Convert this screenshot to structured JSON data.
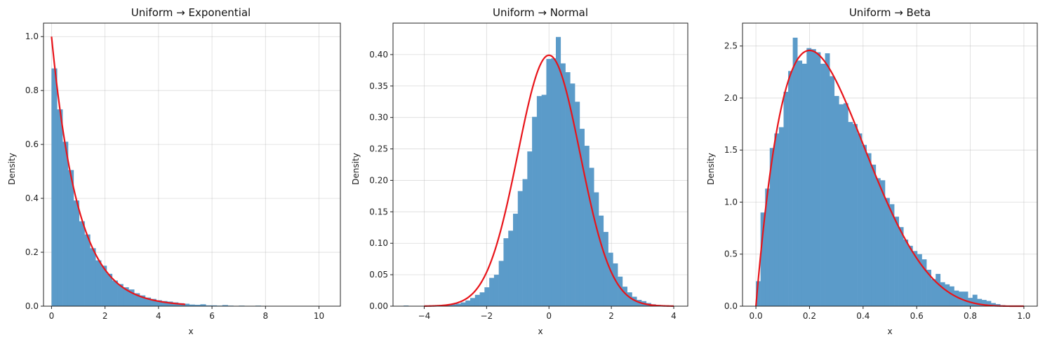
{
  "figure": {
    "background": "#ffffff"
  },
  "colors": {
    "bars": "#5b9bc9",
    "curve": "#e8141a"
  },
  "chart_data": [
    {
      "type": "bar",
      "title": "Uniform → Exponential",
      "xlabel": "x",
      "ylabel": "Density",
      "xlim": [
        -0.3,
        10.8
      ],
      "ylim": [
        0,
        1.05
      ],
      "xticks": [
        0,
        2,
        4,
        6,
        8,
        10
      ],
      "xtick_labels": [
        "0",
        "2",
        "4",
        "6",
        "8",
        "10"
      ],
      "yticks": [
        0.0,
        0.2,
        0.4,
        0.6,
        0.8,
        1.0
      ],
      "ytick_labels": [
        "0.0",
        "0.2",
        "0.4",
        "0.6",
        "0.8",
        "1.0"
      ],
      "grid": true,
      "histogram": {
        "bin_start": 0,
        "bin_width": 0.206,
        "densities": [
          0.882,
          0.73,
          0.61,
          0.505,
          0.392,
          0.315,
          0.266,
          0.215,
          0.17,
          0.15,
          0.12,
          0.095,
          0.082,
          0.07,
          0.062,
          0.048,
          0.04,
          0.032,
          0.027,
          0.022,
          0.019,
          0.017,
          0.014,
          0.011,
          0.009,
          0.006,
          0.005,
          0.007,
          0.003,
          0.003,
          0.002,
          0.004,
          0.002,
          0.001,
          0.002,
          0.001,
          0.001,
          0.002,
          0.001,
          0.001,
          0.0005,
          0.0005,
          0.0005,
          0.0005,
          0.0005,
          0.0005,
          0.0005,
          0.0005,
          0.0005,
          0.0005
        ]
      },
      "curve": {
        "name": "exponential pdf",
        "x_range": [
          0,
          5
        ],
        "function": "exp"
      }
    },
    {
      "type": "bar",
      "title": "Uniform → Normal",
      "xlabel": "x",
      "ylabel": "Density",
      "xlim": [
        -5.0,
        4.45
      ],
      "ylim": [
        0,
        0.45
      ],
      "xticks": [
        -4,
        -2,
        0,
        2,
        4
      ],
      "xtick_labels": [
        "−4",
        "−2",
        "0",
        "2",
        "4"
      ],
      "yticks": [
        0.0,
        0.05,
        0.1,
        0.15,
        0.2,
        0.25,
        0.3,
        0.35,
        0.4
      ],
      "ytick_labels": [
        "0.00",
        "0.05",
        "0.10",
        "0.15",
        "0.20",
        "0.25",
        "0.30",
        "0.35",
        "0.40"
      ],
      "grid": true,
      "histogram": {
        "bin_start": -4.66,
        "bin_width": 0.1525,
        "densities": [
          0.001,
          0.0,
          0.0,
          0.0,
          0.0,
          0.0,
          0.0005,
          0.001,
          0.001,
          0.002,
          0.003,
          0.004,
          0.006,
          0.009,
          0.013,
          0.018,
          0.022,
          0.03,
          0.045,
          0.05,
          0.072,
          0.108,
          0.12,
          0.147,
          0.183,
          0.202,
          0.246,
          0.301,
          0.334,
          0.336,
          0.393,
          0.394,
          0.428,
          0.386,
          0.372,
          0.354,
          0.325,
          0.282,
          0.255,
          0.22,
          0.181,
          0.144,
          0.118,
          0.085,
          0.068,
          0.047,
          0.031,
          0.022,
          0.015,
          0.01,
          0.008,
          0.005,
          0.003,
          0.002,
          0.001
        ]
      },
      "curve": {
        "name": "normal pdf",
        "x_range": [
          -4,
          4
        ],
        "function": "norm"
      }
    },
    {
      "type": "bar",
      "title": "Uniform → Beta",
      "xlabel": "x",
      "ylabel": "Density",
      "xlim": [
        -0.05,
        1.05
      ],
      "ylim": [
        0,
        2.72
      ],
      "xticks": [
        0.0,
        0.2,
        0.4,
        0.6,
        0.8,
        1.0
      ],
      "xtick_labels": [
        "0.0",
        "0.2",
        "0.4",
        "0.6",
        "0.8",
        "1.0"
      ],
      "yticks": [
        0.0,
        0.5,
        1.0,
        1.5,
        2.0,
        2.5
      ],
      "ytick_labels": [
        "0.0",
        "0.5",
        "1.0",
        "1.5",
        "2.0",
        "2.5"
      ],
      "grid": true,
      "histogram": {
        "bin_start": 0.0,
        "bin_width": 0.0172,
        "densities": [
          0.24,
          0.9,
          1.13,
          1.52,
          1.66,
          1.72,
          2.06,
          2.26,
          2.58,
          2.36,
          2.33,
          2.48,
          2.47,
          2.44,
          2.33,
          2.43,
          2.21,
          2.02,
          1.94,
          1.95,
          1.77,
          1.75,
          1.66,
          1.55,
          1.47,
          1.36,
          1.23,
          1.21,
          1.04,
          0.98,
          0.86,
          0.76,
          0.64,
          0.58,
          0.53,
          0.5,
          0.45,
          0.35,
          0.26,
          0.31,
          0.23,
          0.21,
          0.19,
          0.15,
          0.14,
          0.14,
          0.08,
          0.11,
          0.07,
          0.06,
          0.05,
          0.03,
          0.02,
          0.01,
          0.005,
          0.005,
          0.0,
          0.0
        ]
      },
      "curve": {
        "name": "beta pdf",
        "x_range": [
          0,
          1
        ],
        "function": "beta",
        "a": 2,
        "b": 5
      }
    }
  ]
}
